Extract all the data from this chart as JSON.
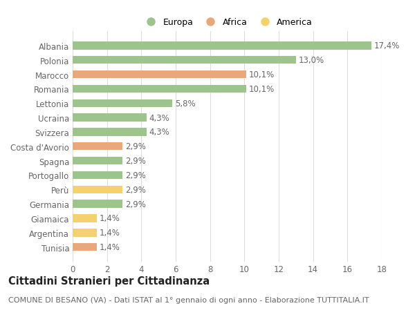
{
  "categories": [
    "Albania",
    "Polonia",
    "Marocco",
    "Romania",
    "Lettonia",
    "Ucraina",
    "Svizzera",
    "Costa d'Avorio",
    "Spagna",
    "Portogallo",
    "Perù",
    "Germania",
    "Giamaica",
    "Argentina",
    "Tunisia"
  ],
  "values": [
    17.4,
    13.0,
    10.1,
    10.1,
    5.8,
    4.3,
    4.3,
    2.9,
    2.9,
    2.9,
    2.9,
    2.9,
    1.4,
    1.4,
    1.4
  ],
  "labels": [
    "17,4%",
    "13,0%",
    "10,1%",
    "10,1%",
    "5,8%",
    "4,3%",
    "4,3%",
    "2,9%",
    "2,9%",
    "2,9%",
    "2,9%",
    "2,9%",
    "1,4%",
    "1,4%",
    "1,4%"
  ],
  "colors": [
    "#9dc48c",
    "#9dc48c",
    "#e8a87c",
    "#9dc48c",
    "#9dc48c",
    "#9dc48c",
    "#9dc48c",
    "#e8a87c",
    "#9dc48c",
    "#9dc48c",
    "#f5d06e",
    "#9dc48c",
    "#f5d06e",
    "#f5d06e",
    "#e8a87c"
  ],
  "legend_labels": [
    "Europa",
    "Africa",
    "America"
  ],
  "legend_colors": [
    "#9dc48c",
    "#e8a87c",
    "#f5d06e"
  ],
  "title": "Cittadini Stranieri per Cittadinanza",
  "subtitle": "COMUNE DI BESANO (VA) - Dati ISTAT al 1° gennaio di ogni anno - Elaborazione TUTTITALIA.IT",
  "xlim": [
    0,
    18
  ],
  "xticks": [
    0,
    2,
    4,
    6,
    8,
    10,
    12,
    14,
    16,
    18
  ],
  "bg_color": "#ffffff",
  "grid_color": "#dddddd",
  "bar_height": 0.55,
  "label_fontsize": 8.5,
  "title_fontsize": 10.5,
  "subtitle_fontsize": 8,
  "tick_fontsize": 8.5,
  "legend_fontsize": 9
}
